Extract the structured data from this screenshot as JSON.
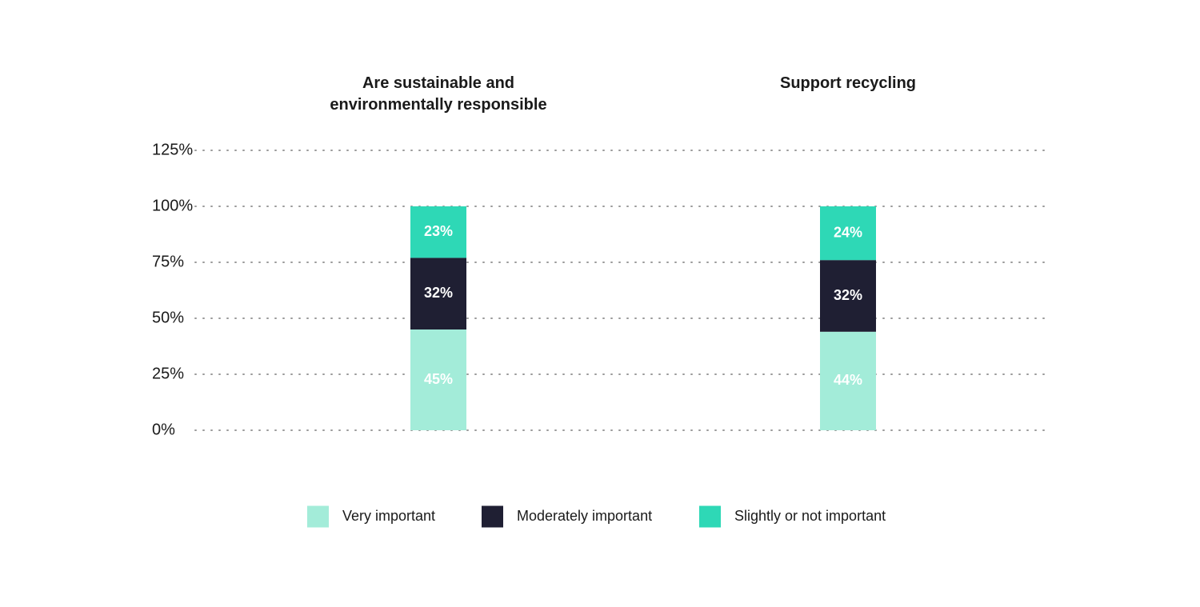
{
  "chart_data": {
    "type": "bar",
    "stacked": true,
    "categories": [
      "Are sustainable and environmentally responsible",
      "Support recycling"
    ],
    "category_title_lines": [
      [
        "Are sustainable and",
        "environmentally responsible"
      ],
      [
        "Support recycling"
      ]
    ],
    "series": [
      {
        "name": "Very important",
        "values": [
          45,
          44
        ],
        "labels": [
          "45%",
          "44%"
        ],
        "color": "#a3ecd9",
        "label_color": "#ffffff"
      },
      {
        "name": "Moderately important",
        "values": [
          32,
          32
        ],
        "labels": [
          "32%",
          "32%"
        ],
        "color": "#1f1f33",
        "label_color": "#ffffff"
      },
      {
        "name": "Slightly or not important",
        "values": [
          23,
          24
        ],
        "labels": [
          "23%",
          "24%"
        ],
        "color": "#2ed8b6",
        "label_color": "#ffffff"
      }
    ],
    "y_ticks": [
      0,
      25,
      50,
      75,
      100,
      125
    ],
    "y_tick_labels": [
      "0%",
      "25%",
      "50%",
      "75%",
      "100%",
      "125%"
    ],
    "ylim": [
      0,
      125
    ],
    "grid": "dotted horizontal",
    "legend_position": "bottom-center",
    "colors": {
      "text": "#1a1a1a",
      "grid": "#9a9a9a"
    }
  }
}
